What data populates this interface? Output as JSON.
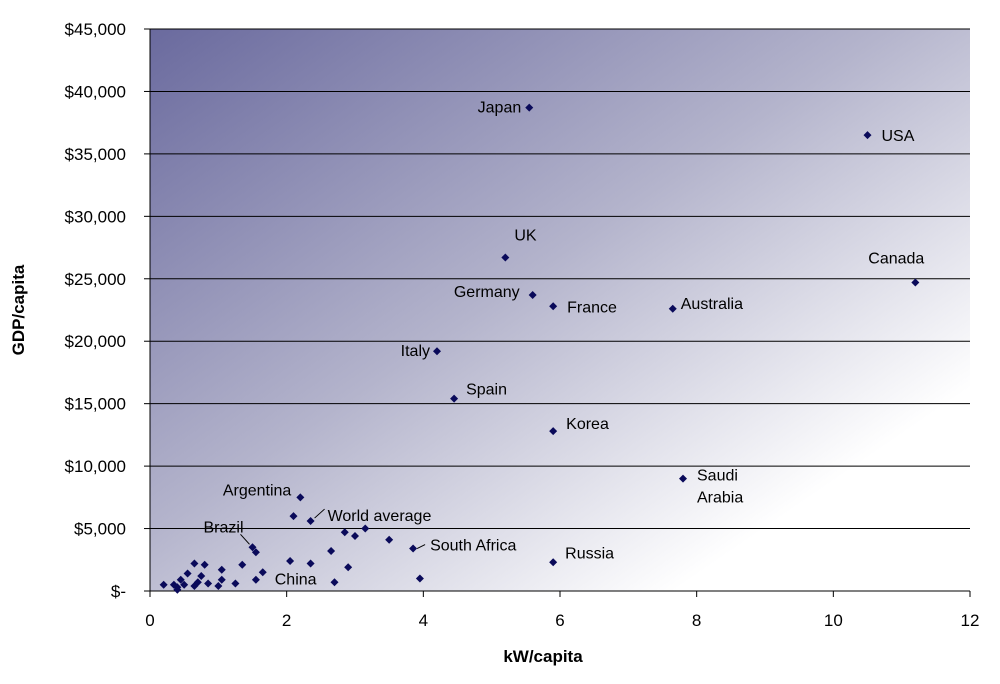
{
  "chart_data": {
    "type": "scatter",
    "xlabel": "kW/capita",
    "ylabel": "GDP/capita",
    "xlim": [
      0,
      12
    ],
    "ylim": [
      0,
      45000
    ],
    "x_ticks": [
      0,
      2,
      4,
      6,
      8,
      10,
      12
    ],
    "x_tick_labels": [
      "0",
      "2",
      "4",
      "6",
      "8",
      "10",
      "12"
    ],
    "y_ticks": [
      0,
      5000,
      10000,
      15000,
      20000,
      25000,
      30000,
      35000,
      40000,
      45000
    ],
    "y_tick_labels": [
      "$-",
      "$5,000",
      "$10,000",
      "$15,000",
      "$20,000",
      "$25,000",
      "$30,000",
      "$35,000",
      "$40,000",
      "$45,000"
    ],
    "grid": "horizontal",
    "background": "gradient",
    "colors": {
      "marker": "#0a0a5a",
      "gradient_dark": "#6a6a9e",
      "gradient_light": "#ffffff",
      "gridline": "#000000"
    },
    "labeled_points": [
      {
        "label": "Japan",
        "x": 5.55,
        "y": 38700
      },
      {
        "label": "USA",
        "x": 10.5,
        "y": 36500
      },
      {
        "label": "UK",
        "x": 5.2,
        "y": 26700
      },
      {
        "label": "Canada",
        "x": 11.2,
        "y": 24700
      },
      {
        "label": "Germany",
        "x": 5.6,
        "y": 23700
      },
      {
        "label": "France",
        "x": 5.9,
        "y": 22800
      },
      {
        "label": "Australia",
        "x": 7.65,
        "y": 22600
      },
      {
        "label": "Italy",
        "x": 4.2,
        "y": 19200
      },
      {
        "label": "Spain",
        "x": 4.45,
        "y": 15400
      },
      {
        "label": "Korea",
        "x": 5.9,
        "y": 12800
      },
      {
        "label": "Saudi Arabia",
        "x": 7.8,
        "y": 9000
      },
      {
        "label": "Argentina",
        "x": 2.2,
        "y": 7500
      },
      {
        "label": "World average",
        "x": 2.35,
        "y": 5600
      },
      {
        "label": "Brazil",
        "x": 1.5,
        "y": 3500
      },
      {
        "label": "South Africa",
        "x": 3.85,
        "y": 3400
      },
      {
        "label": "Russia",
        "x": 5.9,
        "y": 2300
      },
      {
        "label": "China",
        "x": 1.65,
        "y": 1500
      }
    ],
    "points": [
      {
        "x": 2.1,
        "y": 6000
      },
      {
        "x": 2.85,
        "y": 4700
      },
      {
        "x": 3.0,
        "y": 4400
      },
      {
        "x": 3.15,
        "y": 5000
      },
      {
        "x": 3.5,
        "y": 4100
      },
      {
        "x": 2.65,
        "y": 3200
      },
      {
        "x": 2.9,
        "y": 1900
      },
      {
        "x": 2.7,
        "y": 700
      },
      {
        "x": 2.35,
        "y": 2200
      },
      {
        "x": 2.05,
        "y": 2400
      },
      {
        "x": 1.55,
        "y": 3100
      },
      {
        "x": 1.35,
        "y": 2100
      },
      {
        "x": 1.55,
        "y": 900
      },
      {
        "x": 1.25,
        "y": 600
      },
      {
        "x": 1.05,
        "y": 1700
      },
      {
        "x": 1.05,
        "y": 900
      },
      {
        "x": 1.0,
        "y": 400
      },
      {
        "x": 0.8,
        "y": 2100
      },
      {
        "x": 0.65,
        "y": 2200
      },
      {
        "x": 0.75,
        "y": 1200
      },
      {
        "x": 0.7,
        "y": 700
      },
      {
        "x": 0.65,
        "y": 400
      },
      {
        "x": 0.55,
        "y": 1400
      },
      {
        "x": 0.5,
        "y": 500
      },
      {
        "x": 0.45,
        "y": 900
      },
      {
        "x": 0.4,
        "y": 300
      },
      {
        "x": 0.35,
        "y": 500
      },
      {
        "x": 0.4,
        "y": 100
      },
      {
        "x": 0.2,
        "y": 500
      },
      {
        "x": 0.85,
        "y": 600
      },
      {
        "x": 3.95,
        "y": 1000
      }
    ]
  }
}
